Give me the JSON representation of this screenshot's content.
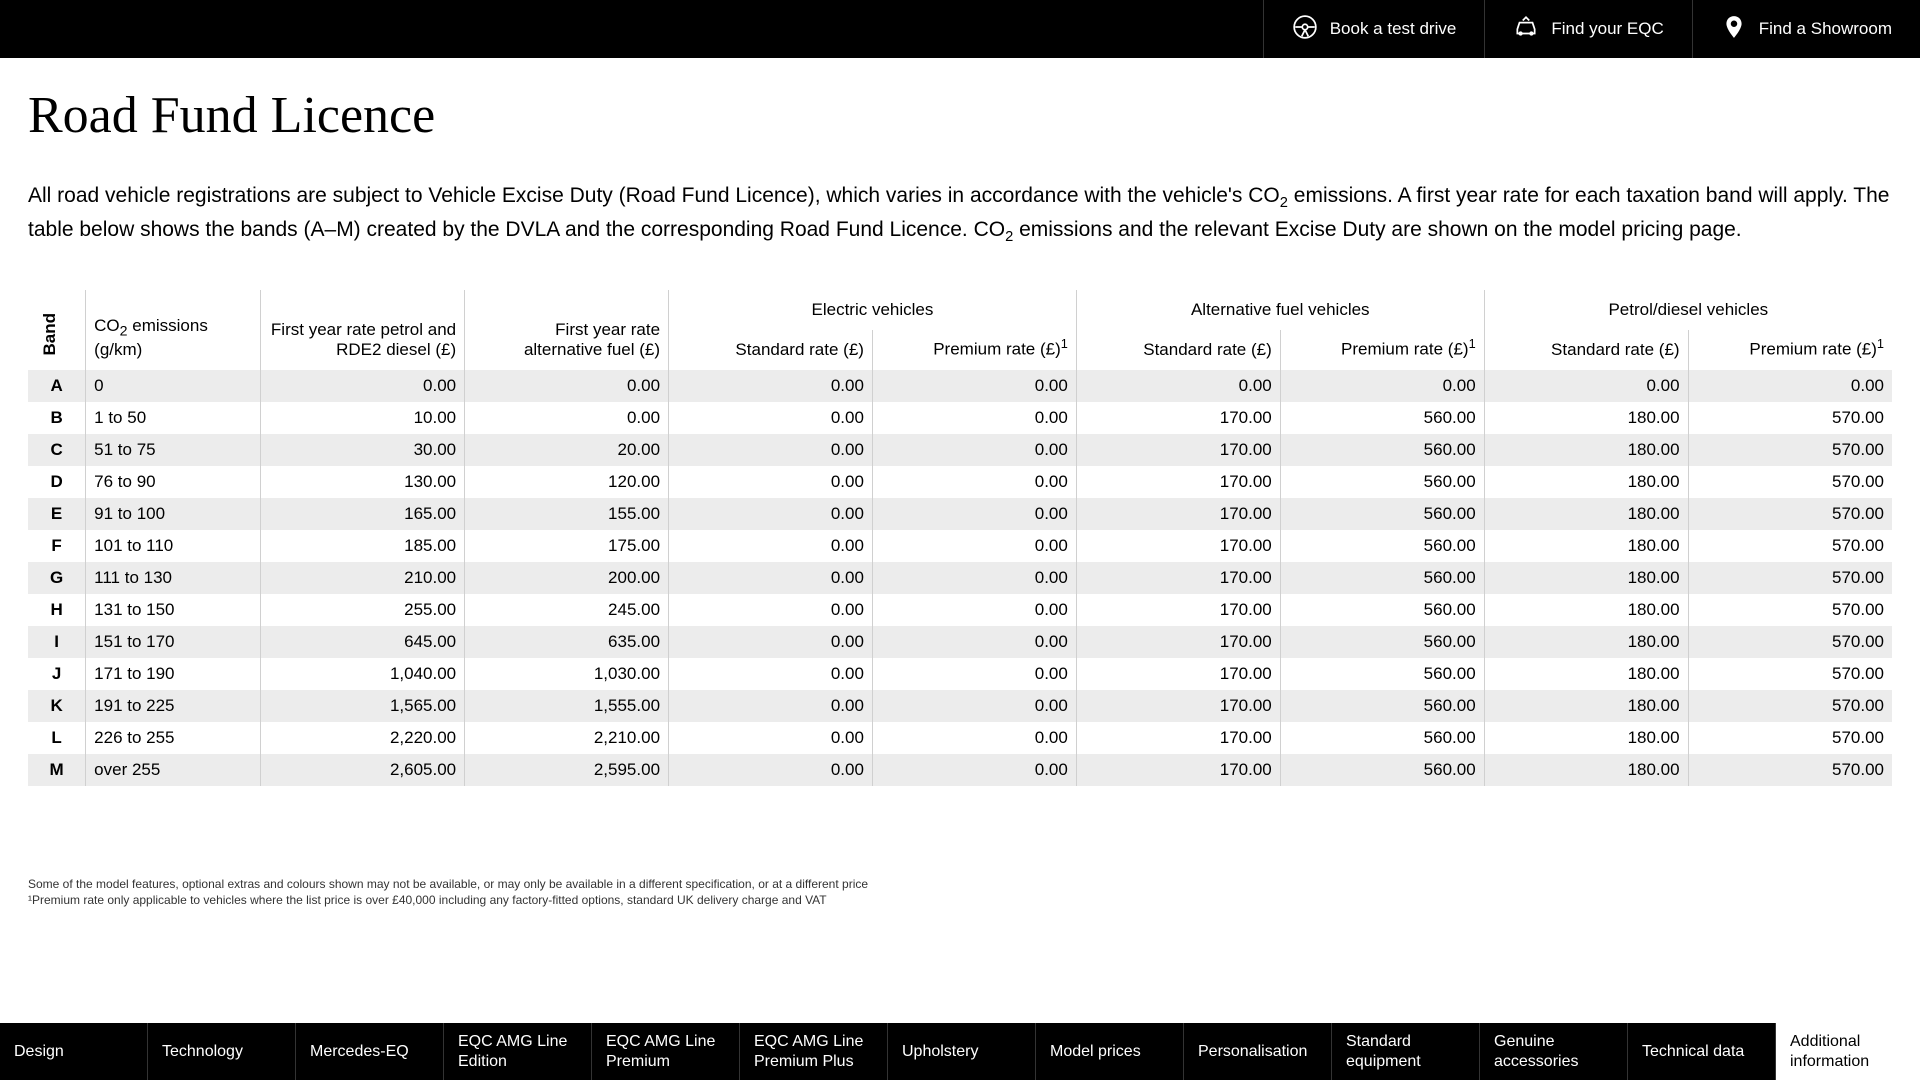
{
  "topbar": {
    "items": [
      {
        "label": "Book a test drive",
        "icon": "steering-wheel"
      },
      {
        "label": "Find your EQC",
        "icon": "car"
      },
      {
        "label": "Find a Showroom",
        "icon": "location-pin"
      }
    ]
  },
  "page": {
    "title": "Road Fund Licence",
    "intro_html": "All road vehicle registrations are subject to Vehicle Excise Duty (Road Fund Licence), which varies in accordance with the vehicle's CO<sub>2</sub> emissions. A first year rate for each taxation band will apply. The table below shows the bands (A–M) created by the DVLA and the corresponding Road Fund Licence. CO<sub>2</sub> emissions and the relevant Excise Duty are shown on the model pricing page."
  },
  "table": {
    "band_header": "Band",
    "co2_header_html": "CO<sub>2</sub> emissions (g/km)",
    "col_first_petrol": "First year rate petrol and RDE2 diesel (£)",
    "col_first_alt": "First year rate alternative fuel (£)",
    "groups": [
      {
        "label": "Electric vehicles",
        "std_label": "Standard rate (£)",
        "prem_label_html": "Premium rate (£)<span class=\"sup1\">1</span>"
      },
      {
        "label": "Alternative fuel vehicles",
        "std_label": "Standard rate (£)",
        "prem_label_html": "Premium rate (£)<span class=\"sup1\">1</span>"
      },
      {
        "label": "Petrol/diesel vehicles",
        "std_label": "Standard rate (£)",
        "prem_label_html": "Premium rate (£)<span class=\"sup1\">1</span>"
      }
    ],
    "rows": [
      {
        "band": "A",
        "co2": "0",
        "petrol": "0.00",
        "alt": "0.00",
        "ev_std": "0.00",
        "ev_prem": "0.00",
        "af_std": "0.00",
        "af_prem": "0.00",
        "pd_std": "0.00",
        "pd_prem": "0.00"
      },
      {
        "band": "B",
        "co2": "1 to 50",
        "petrol": "10.00",
        "alt": "0.00",
        "ev_std": "0.00",
        "ev_prem": "0.00",
        "af_std": "170.00",
        "af_prem": "560.00",
        "pd_std": "180.00",
        "pd_prem": "570.00"
      },
      {
        "band": "C",
        "co2": "51 to 75",
        "petrol": "30.00",
        "alt": "20.00",
        "ev_std": "0.00",
        "ev_prem": "0.00",
        "af_std": "170.00",
        "af_prem": "560.00",
        "pd_std": "180.00",
        "pd_prem": "570.00"
      },
      {
        "band": "D",
        "co2": "76 to 90",
        "petrol": "130.00",
        "alt": "120.00",
        "ev_std": "0.00",
        "ev_prem": "0.00",
        "af_std": "170.00",
        "af_prem": "560.00",
        "pd_std": "180.00",
        "pd_prem": "570.00"
      },
      {
        "band": "E",
        "co2": "91 to 100",
        "petrol": "165.00",
        "alt": "155.00",
        "ev_std": "0.00",
        "ev_prem": "0.00",
        "af_std": "170.00",
        "af_prem": "560.00",
        "pd_std": "180.00",
        "pd_prem": "570.00"
      },
      {
        "band": "F",
        "co2": "101 to 110",
        "petrol": "185.00",
        "alt": "175.00",
        "ev_std": "0.00",
        "ev_prem": "0.00",
        "af_std": "170.00",
        "af_prem": "560.00",
        "pd_std": "180.00",
        "pd_prem": "570.00"
      },
      {
        "band": "G",
        "co2": "111 to 130",
        "petrol": "210.00",
        "alt": "200.00",
        "ev_std": "0.00",
        "ev_prem": "0.00",
        "af_std": "170.00",
        "af_prem": "560.00",
        "pd_std": "180.00",
        "pd_prem": "570.00"
      },
      {
        "band": "H",
        "co2": "131 to 150",
        "petrol": "255.00",
        "alt": "245.00",
        "ev_std": "0.00",
        "ev_prem": "0.00",
        "af_std": "170.00",
        "af_prem": "560.00",
        "pd_std": "180.00",
        "pd_prem": "570.00"
      },
      {
        "band": "I",
        "co2": "151 to 170",
        "petrol": "645.00",
        "alt": "635.00",
        "ev_std": "0.00",
        "ev_prem": "0.00",
        "af_std": "170.00",
        "af_prem": "560.00",
        "pd_std": "180.00",
        "pd_prem": "570.00"
      },
      {
        "band": "J",
        "co2": "171 to 190",
        "petrol": "1,040.00",
        "alt": "1,030.00",
        "ev_std": "0.00",
        "ev_prem": "0.00",
        "af_std": "170.00",
        "af_prem": "560.00",
        "pd_std": "180.00",
        "pd_prem": "570.00"
      },
      {
        "band": "K",
        "co2": "191 to 225",
        "petrol": "1,565.00",
        "alt": "1,555.00",
        "ev_std": "0.00",
        "ev_prem": "0.00",
        "af_std": "170.00",
        "af_prem": "560.00",
        "pd_std": "180.00",
        "pd_prem": "570.00"
      },
      {
        "band": "L",
        "co2": "226 to 255",
        "petrol": "2,220.00",
        "alt": "2,210.00",
        "ev_std": "0.00",
        "ev_prem": "0.00",
        "af_std": "170.00",
        "af_prem": "560.00",
        "pd_std": "180.00",
        "pd_prem": "570.00"
      },
      {
        "band": "M",
        "co2": "over 255",
        "petrol": "2,605.00",
        "alt": "2,595.00",
        "ev_std": "0.00",
        "ev_prem": "0.00",
        "af_std": "170.00",
        "af_prem": "560.00",
        "pd_std": "180.00",
        "pd_prem": "570.00"
      }
    ]
  },
  "footnotes": [
    "Some of the model features, optional extras and colours shown may not be available, or may only be available in a different specification, or at a different price",
    "¹Premium rate only applicable to vehicles where the list price is over £40,000 including any factory-fitted options, standard UK delivery charge and VAT"
  ],
  "bottom_nav": {
    "items": [
      {
        "label": "Design",
        "wide": true
      },
      {
        "label": "Technology",
        "wide": true
      },
      {
        "label": "Mercedes-EQ",
        "wide": true
      },
      {
        "label": "EQC AMG Line Edition",
        "wide": true
      },
      {
        "label": "EQC AMG Line Premium",
        "wide": true
      },
      {
        "label": "EQC AMG Line Premium Plus",
        "wide": true
      },
      {
        "label": "Upholstery",
        "wide": true
      },
      {
        "label": "Model prices",
        "wide": true
      },
      {
        "label": "Personalisation",
        "wide": true
      },
      {
        "label": "Standard equipment",
        "wide": true
      },
      {
        "label": "Genuine accessories",
        "wide": true
      },
      {
        "label": "Technical data",
        "wide": true
      },
      {
        "label": "Additional information",
        "wide": true,
        "active": true
      }
    ]
  },
  "colors": {
    "header_bg": "#000000",
    "row_stripe": "#ececec",
    "border": "#d0d0d0",
    "text": "#000000"
  }
}
